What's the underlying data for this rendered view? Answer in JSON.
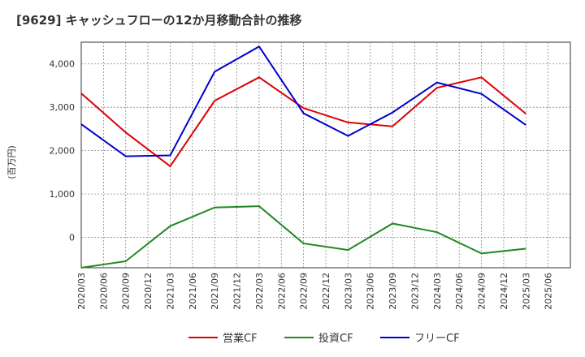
{
  "chart_data": {
    "type": "line",
    "title": "[9629]  キャッシュフローの12か月移動合計の推移",
    "ylabel": "(百万円)",
    "xlabel": "",
    "ylim": [
      -700,
      4500
    ],
    "yticks": [
      0,
      1000,
      2000,
      3000,
      4000
    ],
    "ytick_labels": [
      "0",
      "1,000",
      "2,000",
      "3,000",
      "4,000"
    ],
    "x_ticks": [
      "2020/03",
      "2020/06",
      "2020/09",
      "2020/12",
      "2021/03",
      "2021/06",
      "2021/09",
      "2021/12",
      "2022/03",
      "2022/06",
      "2022/09",
      "2022/12",
      "2023/03",
      "2023/06",
      "2023/09",
      "2023/12",
      "2024/03",
      "2024/06",
      "2024/09",
      "2024/12",
      "2025/03",
      "2025/06"
    ],
    "categories": [
      "2020/03",
      "2020/09",
      "2021/03",
      "2021/09",
      "2022/03",
      "2022/09",
      "2023/03",
      "2023/09",
      "2024/03",
      "2024/09",
      "2025/03"
    ],
    "series": [
      {
        "name": "営業CF",
        "color": "#dd0000",
        "values": [
          3320,
          2420,
          1640,
          3150,
          3690,
          2980,
          2650,
          2560,
          3450,
          3690,
          2850
        ]
      },
      {
        "name": "投資CF",
        "color": "#228822",
        "values": [
          -700,
          -550,
          260,
          690,
          720,
          -140,
          -290,
          320,
          120,
          -370,
          -260
        ]
      },
      {
        "name": "フリーCF",
        "color": "#0000cc",
        "values": [
          2610,
          1870,
          1890,
          3820,
          4400,
          2860,
          2340,
          2880,
          3570,
          3310,
          2590
        ]
      }
    ],
    "grid": true,
    "legend": "bottom"
  }
}
